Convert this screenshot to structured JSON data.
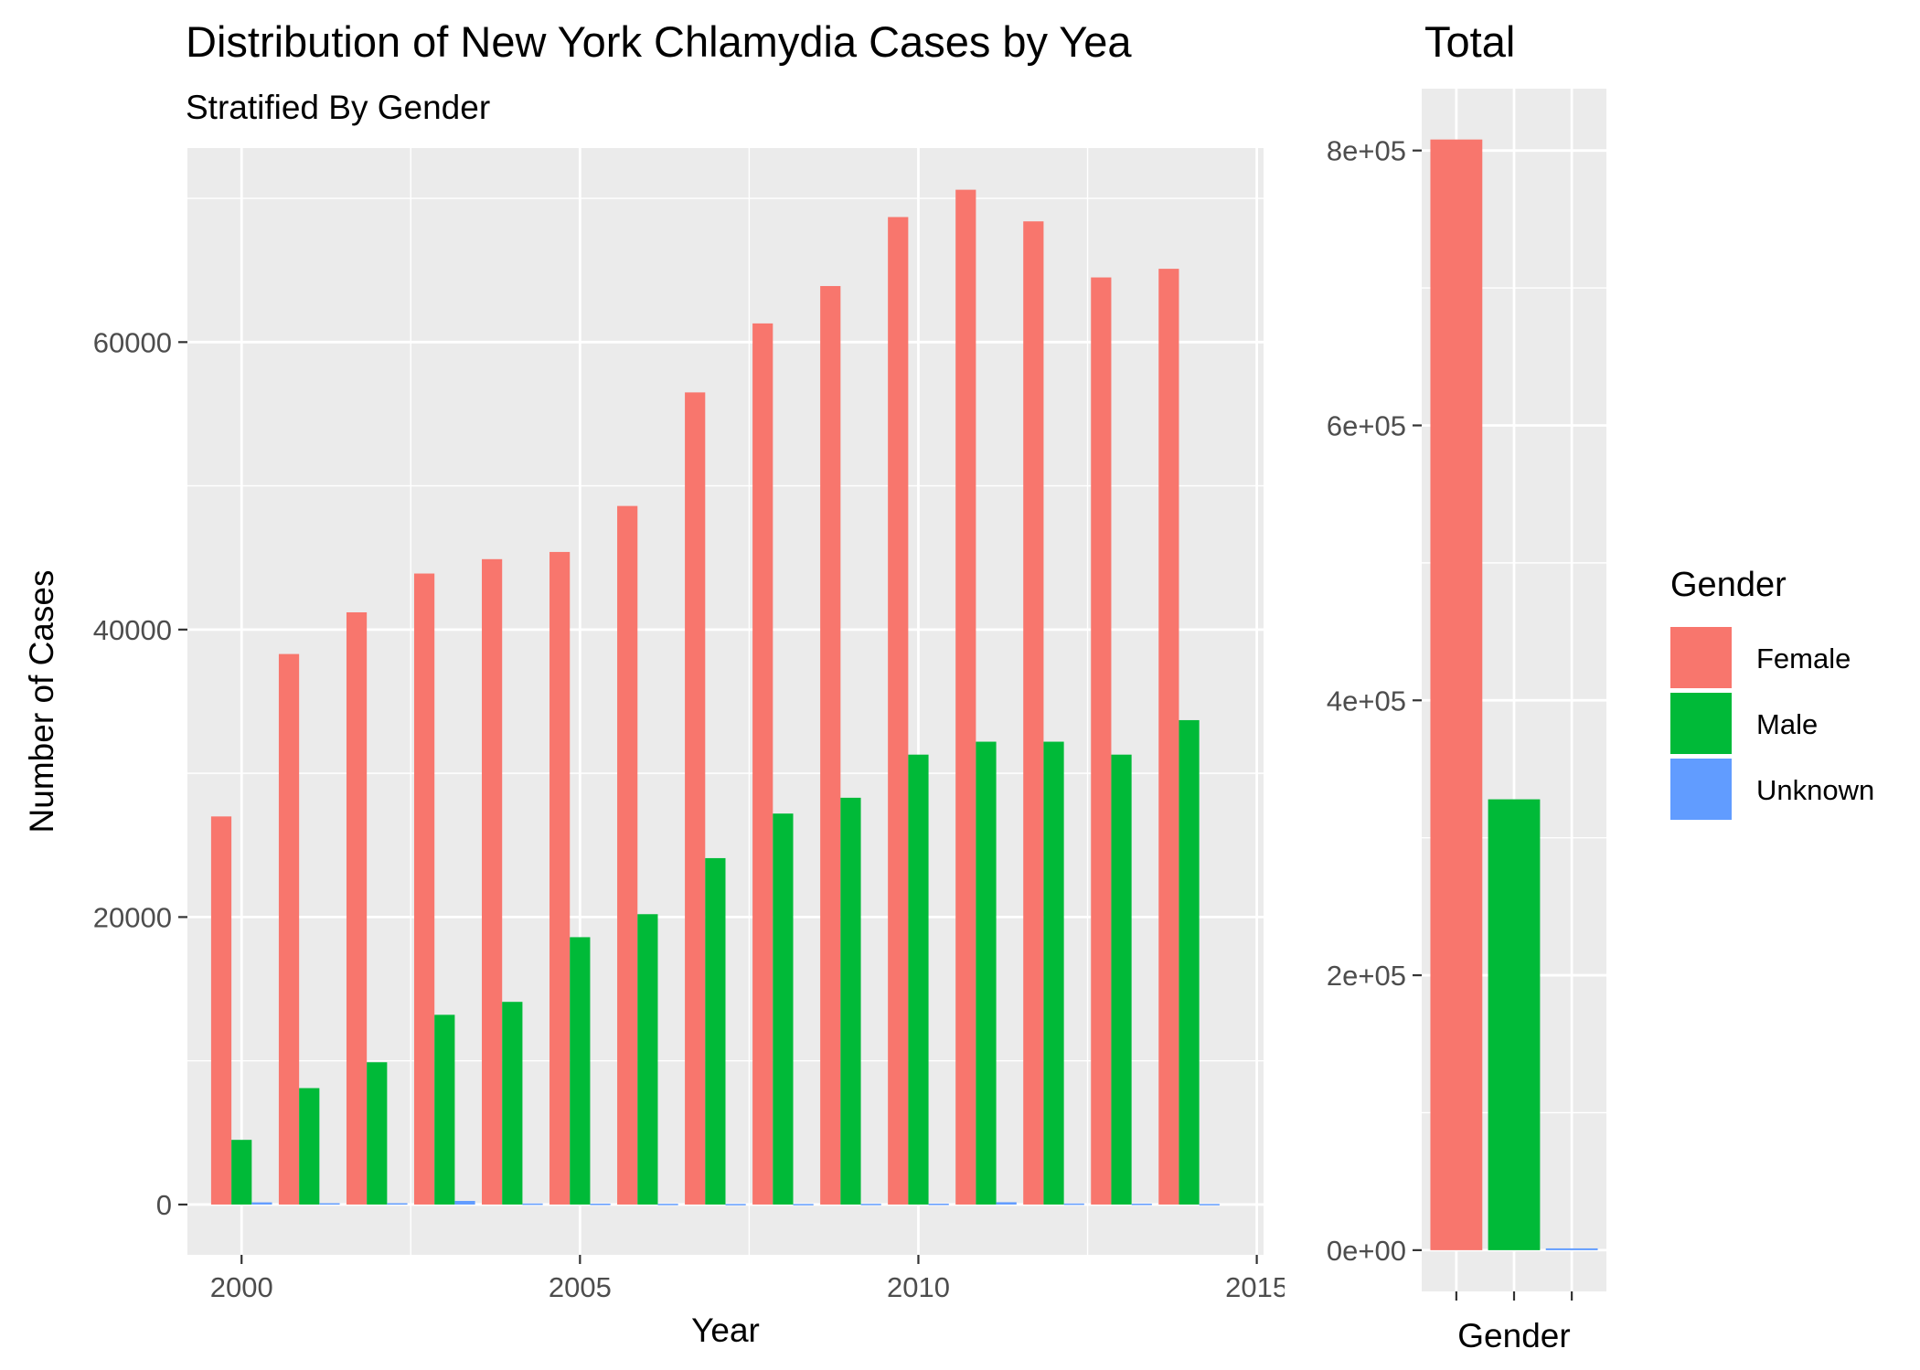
{
  "chart_data": [
    {
      "type": "bar",
      "title": "Distribution of New York Chlamydia Cases by Yea",
      "subtitle": "Stratified By Gender",
      "xlabel": "Year",
      "ylabel": "Number of Cases",
      "xlim": [
        1999.2,
        2015.1
      ],
      "ylim": [
        -3500,
        73500
      ],
      "x_ticks": [
        2000,
        2005,
        2010,
        2015
      ],
      "x_tick_labels": [
        "2000",
        "2005",
        "2010",
        "2015"
      ],
      "y_ticks": [
        0,
        20000,
        40000,
        60000
      ],
      "y_tick_labels": [
        "0",
        "20000",
        "40000",
        "60000"
      ],
      "grid": true,
      "categories": [
        2000,
        2001,
        2002,
        2003,
        2004,
        2005,
        2006,
        2007,
        2008,
        2009,
        2010,
        2011,
        2012,
        2013,
        2014
      ],
      "series": [
        {
          "name": "Female",
          "color": "#F8766D",
          "values": [
            27000,
            38300,
            41200,
            43900,
            44900,
            45400,
            48600,
            56500,
            61300,
            63900,
            68700,
            70600,
            68400,
            64500,
            65100
          ]
        },
        {
          "name": "Male",
          "color": "#00BA38",
          "values": [
            4500,
            8100,
            9900,
            13200,
            14100,
            18600,
            20200,
            24100,
            27200,
            28300,
            31300,
            32200,
            32200,
            31300,
            33700
          ]
        },
        {
          "name": "Unknown",
          "color": "#619CFF",
          "values": [
            150,
            90,
            90,
            250,
            70,
            60,
            50,
            40,
            40,
            50,
            60,
            160,
            70,
            60,
            40
          ]
        }
      ]
    },
    {
      "type": "bar",
      "title": "Total",
      "xlabel": "Gender",
      "ylabel": "",
      "ylim": [
        -30000,
        845000
      ],
      "y_ticks": [
        0,
        200000,
        400000,
        600000,
        800000
      ],
      "y_tick_labels": [
        "0e+00",
        "2e+05",
        "4e+05",
        "6e+05",
        "8e+05"
      ],
      "grid": true,
      "categories": [
        "Female",
        "Male",
        "Unknown"
      ],
      "values": [
        808000,
        328000,
        1300
      ],
      "colors": [
        "#F8766D",
        "#00BA38",
        "#619CFF"
      ]
    }
  ],
  "legend": {
    "title": "Gender",
    "position": "right",
    "items": [
      {
        "label": "Female",
        "color": "#F8766D"
      },
      {
        "label": "Male",
        "color": "#00BA38"
      },
      {
        "label": "Unknown",
        "color": "#619CFF"
      }
    ]
  }
}
